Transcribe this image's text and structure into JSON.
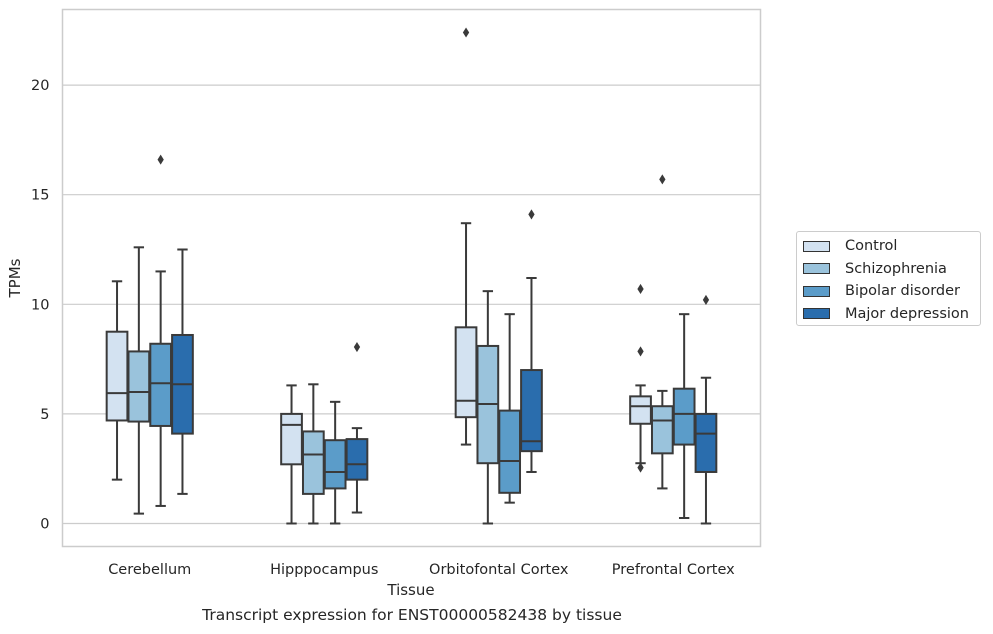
{
  "chart_data": {
    "type": "boxplot",
    "title": "",
    "caption": "Transcript expression for ENST00000582438 by tissue",
    "xlabel": "Tissue",
    "ylabel": "TPMs",
    "ylim": [
      -1.05,
      23.45
    ],
    "yticks": [
      0,
      5,
      10,
      15,
      20
    ],
    "grid": "horizontal",
    "legend_position": "right",
    "categories": [
      "Cerebellum",
      "Hipppocampus",
      "Orbitofontal Cortex",
      "Prefrontal Cortex"
    ],
    "series": [
      {
        "name": "Control",
        "color": "#d3e2f1",
        "boxes": [
          {
            "whisker_low": 2.0,
            "q1": 4.7,
            "median": 5.95,
            "q3": 8.75,
            "whisker_high": 11.05,
            "outliers": []
          },
          {
            "whisker_low": 0.0,
            "q1": 2.7,
            "median": 4.5,
            "q3": 5.0,
            "whisker_high": 6.3,
            "outliers": []
          },
          {
            "whisker_low": 3.6,
            "q1": 4.85,
            "median": 5.6,
            "q3": 8.95,
            "whisker_high": 13.7,
            "outliers": [
              22.4
            ]
          },
          {
            "whisker_low": 2.75,
            "q1": 4.55,
            "median": 5.35,
            "q3": 5.8,
            "whisker_high": 6.3,
            "outliers": [
              10.7,
              7.85,
              2.55
            ]
          }
        ]
      },
      {
        "name": "Schizophrenia",
        "color": "#9ac3dc",
        "boxes": [
          {
            "whisker_low": 0.45,
            "q1": 4.65,
            "median": 6.0,
            "q3": 7.85,
            "whisker_high": 12.6,
            "outliers": []
          },
          {
            "whisker_low": 0.0,
            "q1": 1.35,
            "median": 3.15,
            "q3": 4.2,
            "whisker_high": 6.35,
            "outliers": []
          },
          {
            "whisker_low": 0.0,
            "q1": 2.75,
            "median": 5.45,
            "q3": 8.1,
            "whisker_high": 10.6,
            "outliers": []
          },
          {
            "whisker_low": 1.6,
            "q1": 3.2,
            "median": 4.7,
            "q3": 5.35,
            "whisker_high": 6.05,
            "outliers": [
              15.7
            ]
          }
        ]
      },
      {
        "name": "Bipolar disorder",
        "color": "#5b9cc9",
        "boxes": [
          {
            "whisker_low": 0.8,
            "q1": 4.45,
            "median": 6.4,
            "q3": 8.2,
            "whisker_high": 11.5,
            "outliers": [
              16.6
            ]
          },
          {
            "whisker_low": 0.0,
            "q1": 1.6,
            "median": 2.35,
            "q3": 3.8,
            "whisker_high": 5.55,
            "outliers": []
          },
          {
            "whisker_low": 0.95,
            "q1": 1.4,
            "median": 2.85,
            "q3": 5.15,
            "whisker_high": 9.55,
            "outliers": []
          },
          {
            "whisker_low": 0.25,
            "q1": 3.6,
            "median": 5.0,
            "q3": 6.15,
            "whisker_high": 9.55,
            "outliers": []
          }
        ]
      },
      {
        "name": "Major depression",
        "color": "#2a6dad",
        "boxes": [
          {
            "whisker_low": 1.35,
            "q1": 4.1,
            "median": 6.35,
            "q3": 8.6,
            "whisker_high": 12.5,
            "outliers": []
          },
          {
            "whisker_low": 0.5,
            "q1": 2.0,
            "median": 2.7,
            "q3": 3.85,
            "whisker_high": 4.35,
            "outliers": [
              8.05
            ]
          },
          {
            "whisker_low": 2.35,
            "q1": 3.3,
            "median": 3.75,
            "q3": 7.0,
            "whisker_high": 11.2,
            "outliers": [
              14.1
            ]
          },
          {
            "whisker_low": 0.0,
            "q1": 2.35,
            "median": 4.1,
            "q3": 5.0,
            "whisker_high": 6.65,
            "outliers": [
              10.2
            ]
          }
        ]
      }
    ]
  }
}
